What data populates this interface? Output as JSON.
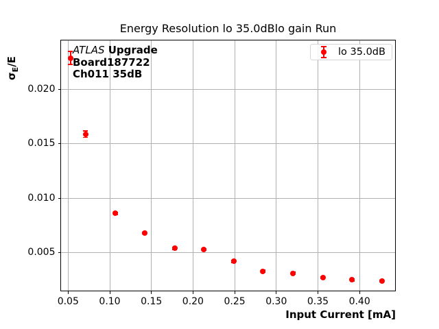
{
  "figure": {
    "background": "#ffffff"
  },
  "chart_data": {
    "type": "scatter",
    "title": "Energy Resolution lo 35.0dBlo gain Run",
    "xlabel": "Input Current [mA]",
    "ylabel": "σE/E",
    "ylabel_parts": {
      "sigma": "σ",
      "sub": "E",
      "rest": "/E"
    },
    "grid": true,
    "grid_color": "#b0b0b0",
    "accent_color": "#ff0000",
    "legend": {
      "label": "lo 35.0dB",
      "position": "upper right"
    },
    "annotation": {
      "line1_italic": "ATLAS",
      "line1_bold": "Upgrade",
      "line2": "Board187722",
      "line3": "Ch011 35dB"
    },
    "xlim": [
      0.0411,
      0.4431
    ],
    "ylim": [
      0.00148,
      0.02454
    ],
    "xticks": [
      0.05,
      0.1,
      0.15,
      0.2,
      0.25,
      0.3,
      0.35,
      0.4
    ],
    "xtick_labels": [
      "0.05",
      "0.10",
      "0.15",
      "0.20",
      "0.25",
      "0.30",
      "0.35",
      "0.40"
    ],
    "yticks": [
      0.005,
      0.01,
      0.015,
      0.02
    ],
    "ytick_labels": [
      "0.005",
      "0.010",
      "0.015",
      "0.020"
    ],
    "series": [
      {
        "name": "lo 35.0dB",
        "color": "#ff0000",
        "marker": "circle-with-errorbars",
        "x": [
          0.053,
          0.071,
          0.107,
          0.142,
          0.178,
          0.213,
          0.249,
          0.284,
          0.32,
          0.356,
          0.391,
          0.427
        ],
        "y": [
          0.0229,
          0.0159,
          0.0086,
          0.0068,
          0.0054,
          0.0053,
          0.0042,
          0.0033,
          0.0031,
          0.0027,
          0.0025,
          0.0024
        ],
        "yerr": [
          0.0006,
          0.0003,
          0.0001,
          0.0001,
          0.0001,
          0.0001,
          0.0001,
          0.0001,
          0.0001,
          0.0001,
          0.0001,
          0.0001
        ]
      }
    ]
  }
}
